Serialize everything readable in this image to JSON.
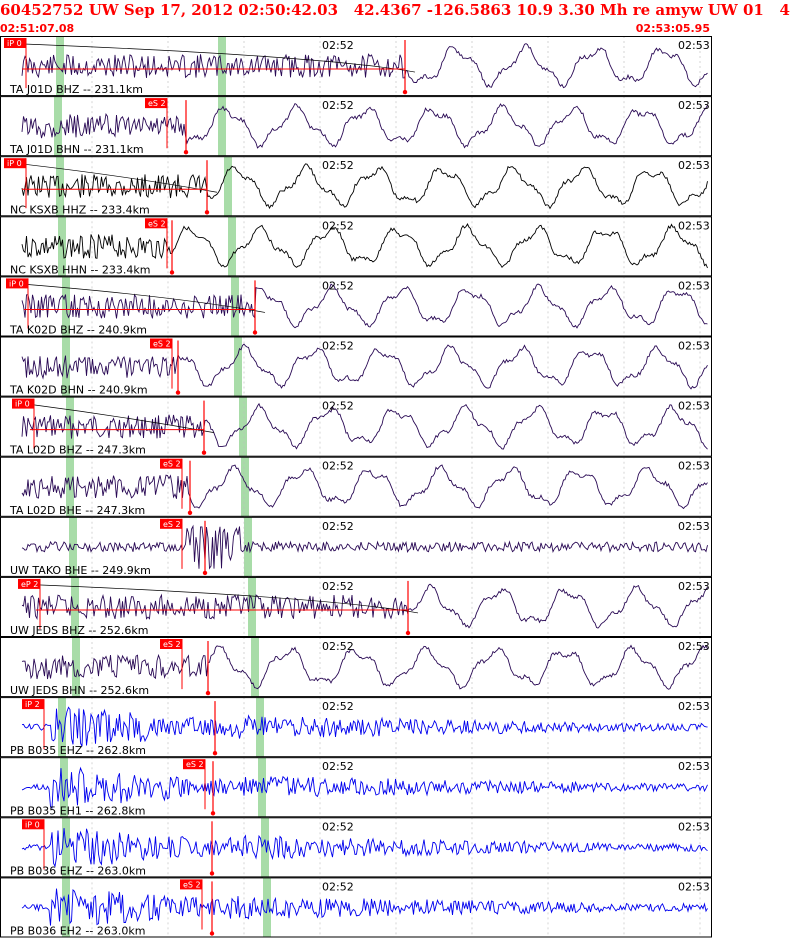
{
  "header": {
    "title": "60452752 UW Sep 17, 2012 02:50:42.03   42.4367 -126.5863 10.9 3.30 Mh re amyw UW 01   4",
    "start_time": "02:51:07.08",
    "end_time": "02:53:05.95"
  },
  "time_ticks": {
    "mid_label": "02:52",
    "end_label": "02:53"
  },
  "colors": {
    "header": "#ff0000",
    "trace_broadband": "#2a0a55",
    "trace_nc": "#000000",
    "trace_pb": "#0000ee",
    "pick": "#ff0000",
    "phase_window": "#a8dca8",
    "grid": "#bbbbbb",
    "divider": "#000000"
  },
  "traces": [
    {
      "label": "TA J01D BHZ -- 231.1km",
      "color": "broadband",
      "pick": "iP 0"
    },
    {
      "label": "TA J01D BHN -- 231.1km",
      "color": "broadband",
      "pick": "eS 2"
    },
    {
      "label": "NC KSXB HHZ -- 233.4km",
      "color": "nc",
      "pick": "iP 0"
    },
    {
      "label": "NC KSXB HHN -- 233.4km",
      "color": "nc",
      "pick": "eS 2"
    },
    {
      "label": "TA K02D BHZ -- 240.9km",
      "color": "broadband",
      "pick": "iP 0"
    },
    {
      "label": "TA K02D BHN -- 240.9km",
      "color": "broadband",
      "pick": "eS 2"
    },
    {
      "label": "TA L02D BHZ -- 247.3km",
      "color": "broadband",
      "pick": "iP 0"
    },
    {
      "label": "TA L02D BHE -- 247.3km",
      "color": "broadband",
      "pick": "eS 2"
    },
    {
      "label": "UW TAKO BHE -- 249.9km",
      "color": "broadband",
      "pick": "eS 2"
    },
    {
      "label": "UW JEDS BHZ -- 252.6km",
      "color": "broadband",
      "pick": "eP 2"
    },
    {
      "label": "UW JEDS BHN -- 252.6km",
      "color": "broadband",
      "pick": "eS 2"
    },
    {
      "label": "PB B035 EHZ -- 262.8km",
      "color": "pb",
      "pick": "iP 2"
    },
    {
      "label": "PB B035 EH1 -- 262.8km",
      "color": "pb",
      "pick": "eS 2"
    },
    {
      "label": "PB B036 EHZ -- 263.0km",
      "color": "pb",
      "pick": "iP 0"
    },
    {
      "label": "PB B036 EH2 -- 263.0km",
      "color": "pb",
      "pick": "eS 2"
    }
  ]
}
